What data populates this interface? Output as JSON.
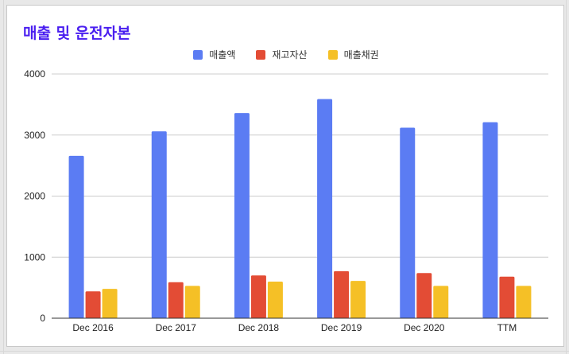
{
  "chart_data": {
    "type": "bar",
    "title": "매출 및 운전자본",
    "categories": [
      "Dec 2016",
      "Dec 2017",
      "Dec 2018",
      "Dec 2019",
      "Dec 2020",
      "TTM"
    ],
    "series": [
      {
        "name": "매출액",
        "color": "#5b7cf3",
        "values": [
          2660,
          3060,
          3360,
          3590,
          3120,
          3210
        ]
      },
      {
        "name": "재고자산",
        "color": "#e34c35",
        "values": [
          440,
          590,
          700,
          770,
          740,
          680
        ]
      },
      {
        "name": "매출채권",
        "color": "#f5c026",
        "values": [
          480,
          530,
          600,
          610,
          530,
          530
        ]
      }
    ],
    "ylim": [
      0,
      4000
    ],
    "yticks": [
      0,
      1000,
      2000,
      3000,
      4000
    ],
    "xlabel": "",
    "ylabel": "",
    "grid": true,
    "legend_position": "top-center",
    "colors": {
      "title": "#4a1ff0",
      "gridline": "#cccccc",
      "axis": "#333333"
    }
  }
}
